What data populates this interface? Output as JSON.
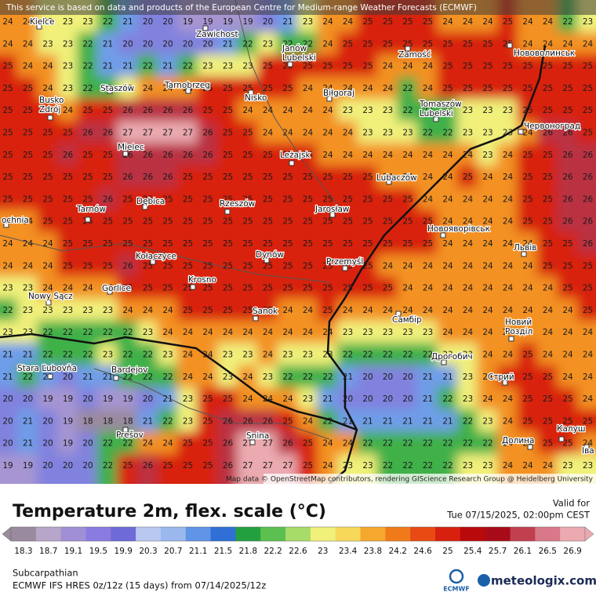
{
  "notice": "This service is based on data and products of the European Centre for Medium-range Weather Forecasts (ECMWF)",
  "attribution": "Map data © OpenStreetMap contributors, rendering GIScience Research Group @ Heidelberg University",
  "map": {
    "values": [
      [
        24,
        24,
        23,
        23,
        23,
        22,
        21,
        20,
        20,
        19,
        19,
        19,
        19,
        20,
        21,
        23,
        24,
        24,
        25,
        25,
        25,
        25,
        24,
        24,
        24,
        25,
        24,
        24,
        22,
        23
      ],
      [
        24,
        24,
        23,
        23,
        22,
        21,
        20,
        20,
        20,
        20,
        20,
        21,
        22,
        23,
        22,
        22,
        24,
        25,
        25,
        25,
        25,
        25,
        25,
        25,
        25,
        25,
        24,
        24,
        24,
        24
      ],
      [
        25,
        24,
        24,
        23,
        22,
        21,
        21,
        22,
        21,
        22,
        23,
        23,
        23,
        25,
        25,
        25,
        25,
        25,
        25,
        24,
        24,
        24,
        25,
        25,
        25,
        25,
        25,
        25,
        25,
        25
      ],
      [
        25,
        25,
        24,
        23,
        22,
        22,
        23,
        24,
        24,
        24,
        25,
        25,
        25,
        25,
        25,
        24,
        24,
        24,
        24,
        24,
        22,
        24,
        25,
        25,
        25,
        25,
        25,
        25,
        25,
        25
      ],
      [
        25,
        25,
        25,
        24,
        25,
        25,
        26,
        26,
        26,
        26,
        25,
        25,
        24,
        24,
        24,
        24,
        24,
        23,
        23,
        23,
        22,
        22,
        22,
        23,
        23,
        23,
        25,
        25,
        25,
        25
      ],
      [
        25,
        25,
        25,
        25,
        26,
        26,
        27,
        27,
        27,
        27,
        26,
        25,
        25,
        24,
        24,
        24,
        24,
        24,
        23,
        23,
        23,
        22,
        22,
        23,
        23,
        23,
        24,
        26,
        26,
        25
      ],
      [
        25,
        25,
        25,
        26,
        25,
        25,
        26,
        26,
        26,
        26,
        26,
        25,
        25,
        25,
        25,
        25,
        24,
        24,
        24,
        24,
        24,
        24,
        24,
        24,
        23,
        24,
        25,
        25,
        26,
        26
      ],
      [
        25,
        25,
        25,
        25,
        25,
        25,
        26,
        26,
        26,
        25,
        25,
        25,
        25,
        25,
        25,
        25,
        25,
        25,
        25,
        24,
        24,
        24,
        24,
        25,
        24,
        24,
        25,
        25,
        26,
        26
      ],
      [
        25,
        25,
        25,
        25,
        25,
        26,
        25,
        25,
        25,
        25,
        25,
        25,
        25,
        25,
        25,
        25,
        25,
        25,
        25,
        25,
        25,
        24,
        24,
        24,
        24,
        24,
        25,
        25,
        26,
        26
      ],
      [
        24,
        24,
        25,
        25,
        25,
        25,
        25,
        25,
        25,
        25,
        25,
        25,
        25,
        25,
        25,
        25,
        25,
        25,
        25,
        25,
        25,
        25,
        24,
        24,
        24,
        24,
        25,
        25,
        26,
        26
      ],
      [
        24,
        24,
        24,
        25,
        25,
        25,
        25,
        25,
        25,
        25,
        25,
        25,
        25,
        25,
        25,
        25,
        25,
        25,
        25,
        25,
        25,
        25,
        24,
        24,
        24,
        24,
        24,
        25,
        25,
        26
      ],
      [
        24,
        24,
        24,
        25,
        25,
        25,
        26,
        25,
        25,
        25,
        25,
        25,
        25,
        25,
        25,
        25,
        25,
        25,
        25,
        24,
        24,
        24,
        24,
        24,
        24,
        24,
        24,
        25,
        25,
        25
      ],
      [
        23,
        23,
        24,
        24,
        24,
        24,
        25,
        25,
        25,
        25,
        25,
        25,
        25,
        25,
        25,
        25,
        25,
        25,
        25,
        25,
        24,
        24,
        24,
        24,
        24,
        24,
        24,
        24,
        25,
        25
      ],
      [
        22,
        23,
        23,
        23,
        23,
        23,
        24,
        24,
        24,
        25,
        25,
        25,
        25,
        25,
        24,
        24,
        25,
        24,
        24,
        24,
        24,
        24,
        24,
        24,
        24,
        24,
        24,
        24,
        24,
        25
      ],
      [
        23,
        23,
        22,
        22,
        22,
        22,
        22,
        23,
        24,
        24,
        24,
        24,
        24,
        24,
        24,
        24,
        24,
        23,
        23,
        23,
        23,
        23,
        24,
        24,
        24,
        24,
        24,
        24,
        24,
        24
      ],
      [
        21,
        21,
        22,
        22,
        22,
        23,
        22,
        22,
        23,
        24,
        24,
        23,
        23,
        24,
        23,
        23,
        23,
        22,
        22,
        22,
        22,
        22,
        23,
        23,
        24,
        24,
        25,
        24,
        24,
        24
      ],
      [
        21,
        22,
        21,
        20,
        21,
        21,
        22,
        22,
        22,
        24,
        24,
        23,
        24,
        23,
        22,
        22,
        22,
        21,
        20,
        20,
        20,
        21,
        21,
        23,
        24,
        25,
        25,
        25,
        24,
        24
      ],
      [
        20,
        20,
        19,
        19,
        20,
        19,
        19,
        20,
        21,
        23,
        25,
        25,
        24,
        24,
        24,
        23,
        21,
        20,
        20,
        20,
        20,
        21,
        22,
        23,
        24,
        24,
        25,
        25,
        25,
        24
      ],
      [
        20,
        21,
        20,
        19,
        18,
        18,
        18,
        21,
        22,
        23,
        25,
        26,
        26,
        26,
        25,
        24,
        22,
        21,
        21,
        21,
        21,
        21,
        21,
        22,
        23,
        24,
        25,
        25,
        25,
        25
      ],
      [
        20,
        21,
        20,
        19,
        20,
        22,
        22,
        24,
        24,
        25,
        25,
        26,
        27,
        27,
        26,
        25,
        24,
        24,
        22,
        22,
        22,
        22,
        22,
        22,
        22,
        24,
        24,
        25,
        25,
        24
      ],
      [
        19,
        19,
        20,
        20,
        20,
        22,
        25,
        26,
        25,
        25,
        25,
        26,
        27,
        27,
        27,
        25,
        24,
        23,
        23,
        22,
        22,
        22,
        22,
        23,
        23,
        24,
        24,
        24,
        23,
        23
      ]
    ],
    "cities": [
      {
        "lines": [
          "Kielce"
        ]
      },
      {
        "lines": [
          "Zawichost"
        ]
      },
      {
        "lines": [
          "Janów",
          "Lubelski"
        ]
      },
      {
        "lines": [
          "Zamość"
        ]
      },
      {
        "lines": [
          "Нововолинськ"
        ]
      },
      {
        "lines": [
          "Staszów"
        ]
      },
      {
        "lines": [
          "Tarnobrzeg"
        ]
      },
      {
        "lines": [
          "Nisko"
        ]
      },
      {
        "lines": [
          "Biłgoraj"
        ]
      },
      {
        "lines": [
          "Busko",
          "Zdrój"
        ]
      },
      {
        "lines": [
          "Tomaszów",
          "Lubelski"
        ]
      },
      {
        "lines": [
          "Червоноград"
        ]
      },
      {
        "lines": [
          "Mielec"
        ]
      },
      {
        "lines": [
          "Leżajsk"
        ]
      },
      {
        "lines": [
          "Lubaczów"
        ]
      },
      {
        "lines": [
          "Tarnów"
        ]
      },
      {
        "lines": [
          "Dębica"
        ]
      },
      {
        "lines": [
          "Rzeszów"
        ]
      },
      {
        "lines": [
          "Jarosław"
        ]
      },
      {
        "lines": [
          "ochnia"
        ]
      },
      {
        "lines": [
          "Новояворівськ"
        ]
      },
      {
        "lines": [
          "Львів"
        ]
      },
      {
        "lines": [
          "Kołaczyce"
        ]
      },
      {
        "lines": [
          "Dynów"
        ]
      },
      {
        "lines": [
          "Przemyśl"
        ]
      },
      {
        "lines": [
          "Krosno"
        ]
      },
      {
        "lines": [
          "Gorlice"
        ]
      },
      {
        "lines": [
          "Nowy Sącz"
        ]
      },
      {
        "lines": [
          "Sanok"
        ]
      },
      {
        "lines": [
          "Самбір"
        ]
      },
      {
        "lines": [
          "Новий",
          "Розділ"
        ]
      },
      {
        "lines": [
          "Stara Ľubovňa"
        ]
      },
      {
        "lines": [
          "Bardejov"
        ]
      },
      {
        "lines": [
          "Дрогобич"
        ]
      },
      {
        "lines": [
          "Стрий"
        ]
      },
      {
        "lines": [
          "Prešov"
        ]
      },
      {
        "lines": [
          "Snina"
        ]
      },
      {
        "lines": [
          "Долина"
        ]
      },
      {
        "lines": [
          "Калуш"
        ]
      },
      {
        "lines": [
          "Іва"
        ]
      }
    ]
  },
  "title": "Temperature 2m, flex. scale (°C)",
  "valid_label": "Valid for",
  "valid_time": "Tue 07/15/2025, 02:00pm CEST",
  "legend": {
    "ticks": [
      18.3,
      18.7,
      19.1,
      19.5,
      19.9,
      20.3,
      20.7,
      21.1,
      21.5,
      21.8,
      22.2,
      22.6,
      23,
      23.4,
      23.8,
      24.2,
      24.6,
      25,
      25.4,
      25.7,
      26.1,
      26.5,
      26.9
    ],
    "colors": [
      "#9a8a9e",
      "#b7a6c9",
      "#a08fd4",
      "#8a7be0",
      "#6e6ad8",
      "#b8c8f0",
      "#9ab8ee",
      "#5f94e6",
      "#2f6fd6",
      "#22a040",
      "#5cc050",
      "#a8dc6a",
      "#f0f07a",
      "#f8d85a",
      "#f5a82e",
      "#f07a1a",
      "#e84a14",
      "#d8200e",
      "#b80a0a",
      "#a80c18",
      "#c04050",
      "#d87888",
      "#eaaab0"
    ]
  },
  "region": "Subcarpathian",
  "model": "ECMWF IFS HRES 0z/12z (15 days) from 07/14/2025/12z",
  "ecmwf_logo": "ECMWF",
  "brand": "meteologix.com"
}
